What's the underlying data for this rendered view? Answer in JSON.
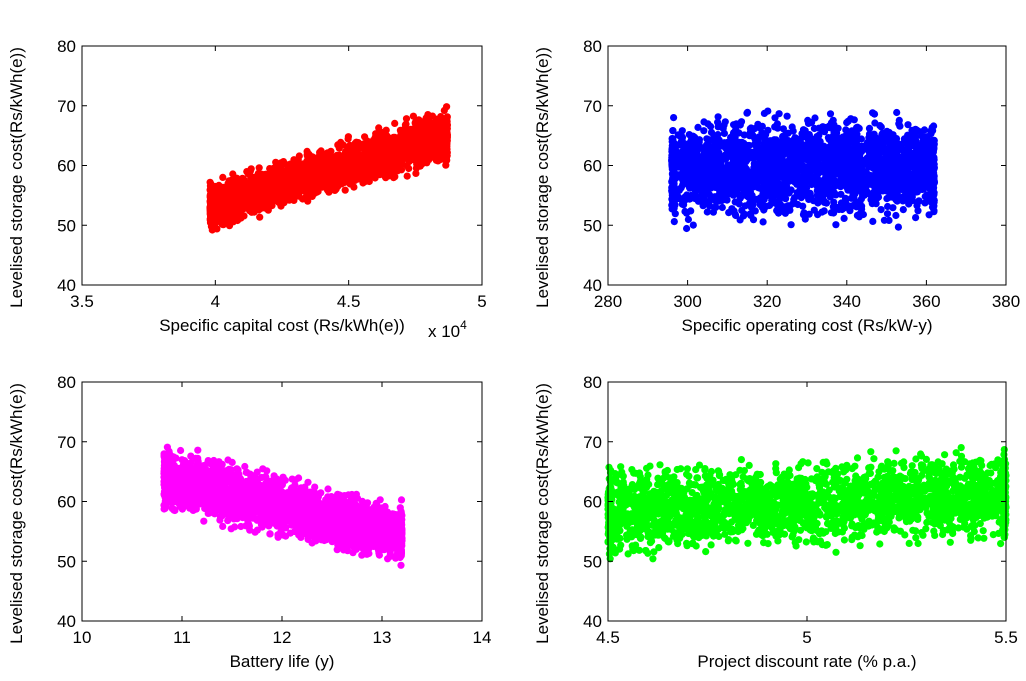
{
  "charts": [
    {
      "type": "scatter",
      "color": "#ff0000",
      "xlabel": "Specific capital cost (Rs/kWh(e))",
      "ylabel": "Levelised storage cost(Rs/kWh(e))",
      "x_multiplier_label": "x 10",
      "x_multiplier_exponent": "4",
      "xlim": [
        3.5,
        5
      ],
      "ylim": [
        40,
        80
      ],
      "xticks": [
        3.5,
        4,
        4.5,
        5
      ],
      "xtick_labels": [
        "3.5",
        "4",
        "4.5",
        "5"
      ],
      "yticks": [
        40,
        50,
        60,
        70,
        80
      ],
      "ytick_labels": [
        "40",
        "50",
        "60",
        "70",
        "80"
      ],
      "cloud": {
        "shape": "band",
        "x_range": [
          3.98,
          4.87
        ],
        "lower_line": [
          [
            3.98,
            48.5
          ],
          [
            4.87,
            59.5
          ]
        ],
        "upper_line": [
          [
            3.98,
            58.0
          ],
          [
            4.87,
            70.5
          ]
        ]
      }
    },
    {
      "type": "scatter",
      "color": "#0000ff",
      "xlabel": "Specific operating cost (Rs/kW-y)",
      "ylabel": "Levelised storage cost(Rs/kWh(e))",
      "xlim": [
        280,
        380
      ],
      "ylim": [
        40,
        80
      ],
      "xticks": [
        280,
        300,
        320,
        340,
        360,
        380
      ],
      "xtick_labels": [
        "280",
        "300",
        "320",
        "340",
        "360",
        "380"
      ],
      "yticks": [
        40,
        50,
        60,
        70,
        80
      ],
      "ytick_labels": [
        "40",
        "50",
        "60",
        "70",
        "80"
      ],
      "cloud": {
        "shape": "band",
        "x_range": [
          296,
          362
        ],
        "lower_line": [
          [
            296,
            49.0
          ],
          [
            362,
            49.0
          ]
        ],
        "upper_line": [
          [
            296,
            70.0
          ],
          [
            362,
            70.0
          ]
        ]
      }
    },
    {
      "type": "scatter",
      "color": "#ff00ff",
      "xlabel": "Battery life (y)",
      "ylabel": "Levelised storage cost(Rs/kWh(e))",
      "xlim": [
        10,
        14
      ],
      "ylim": [
        40,
        80
      ],
      "xticks": [
        10,
        11,
        12,
        13,
        14
      ],
      "xtick_labels": [
        "10",
        "11",
        "12",
        "13",
        "14"
      ],
      "yticks": [
        40,
        50,
        60,
        70,
        80
      ],
      "ytick_labels": [
        "40",
        "50",
        "60",
        "70",
        "80"
      ],
      "cloud": {
        "shape": "band",
        "x_range": [
          10.82,
          13.2
        ],
        "lower_line": [
          [
            10.82,
            57.0
          ],
          [
            13.2,
            48.5
          ]
        ],
        "upper_line": [
          [
            10.82,
            70.5
          ],
          [
            13.2,
            60.5
          ]
        ]
      }
    },
    {
      "type": "scatter",
      "color": "#00ff00",
      "xlabel": "Project discount rate (% p.a.)",
      "ylabel": "Levelised storage cost(Rs/kWh(e))",
      "xlim": [
        4.5,
        5.5
      ],
      "ylim": [
        40,
        80
      ],
      "xticks": [
        4.5,
        5,
        5.5
      ],
      "xtick_labels": [
        "4.5",
        "5",
        "5.5"
      ],
      "yticks": [
        40,
        50,
        60,
        70,
        80
      ],
      "ytick_labels": [
        "40",
        "50",
        "60",
        "70",
        "80"
      ],
      "cloud": {
        "shape": "band",
        "x_range": [
          4.5,
          5.5
        ],
        "lower_line": [
          [
            4.5,
            49.0
          ],
          [
            5.5,
            51.5
          ]
        ],
        "upper_line": [
          [
            4.5,
            67.5
          ],
          [
            5.5,
            70.5
          ]
        ]
      }
    }
  ]
}
